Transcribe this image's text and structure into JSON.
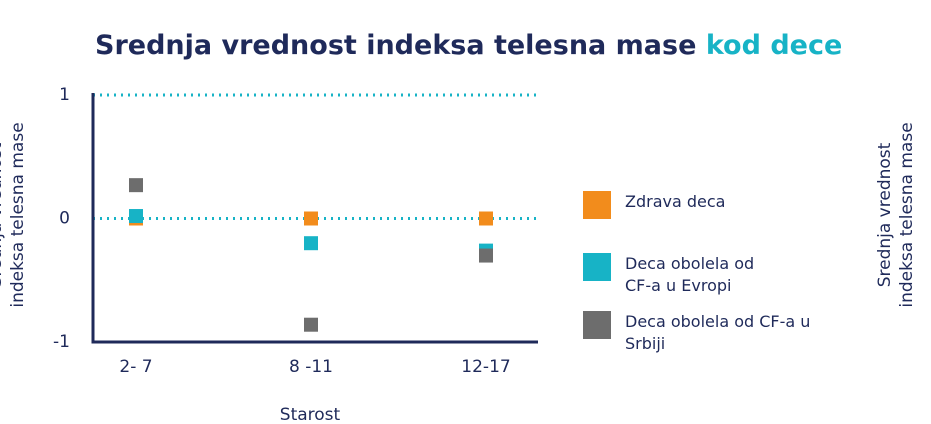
{
  "chart_data": {
    "type": "scatter",
    "title": "Srednja vrednost indeksa telesna mase",
    "title_highlight": "kod dece",
    "xlabel": "Starost",
    "ylabel": [
      "Srednja vrednost",
      "indeksa telesna mase"
    ],
    "categories": [
      "2- 7",
      "8 -11",
      "12-17"
    ],
    "series": [
      {
        "name": "Zdrava deca",
        "color": "#f28c1c",
        "values": [
          0,
          0,
          0
        ]
      },
      {
        "name": "Deca obolela od CF-a u Evropi",
        "color": "#17b3c6",
        "values": [
          0.02,
          -0.2,
          -0.26
        ]
      },
      {
        "name": "Deca obolela od CF-a u Srbiji",
        "color": "#6d6d6d",
        "values": [
          0.27,
          -0.86,
          -0.3
        ]
      }
    ],
    "ylim": [
      -1,
      1
    ],
    "yticks": [
      -1,
      0,
      1
    ],
    "grid": true,
    "grid_color": "#17b3c6",
    "legend": "right"
  }
}
